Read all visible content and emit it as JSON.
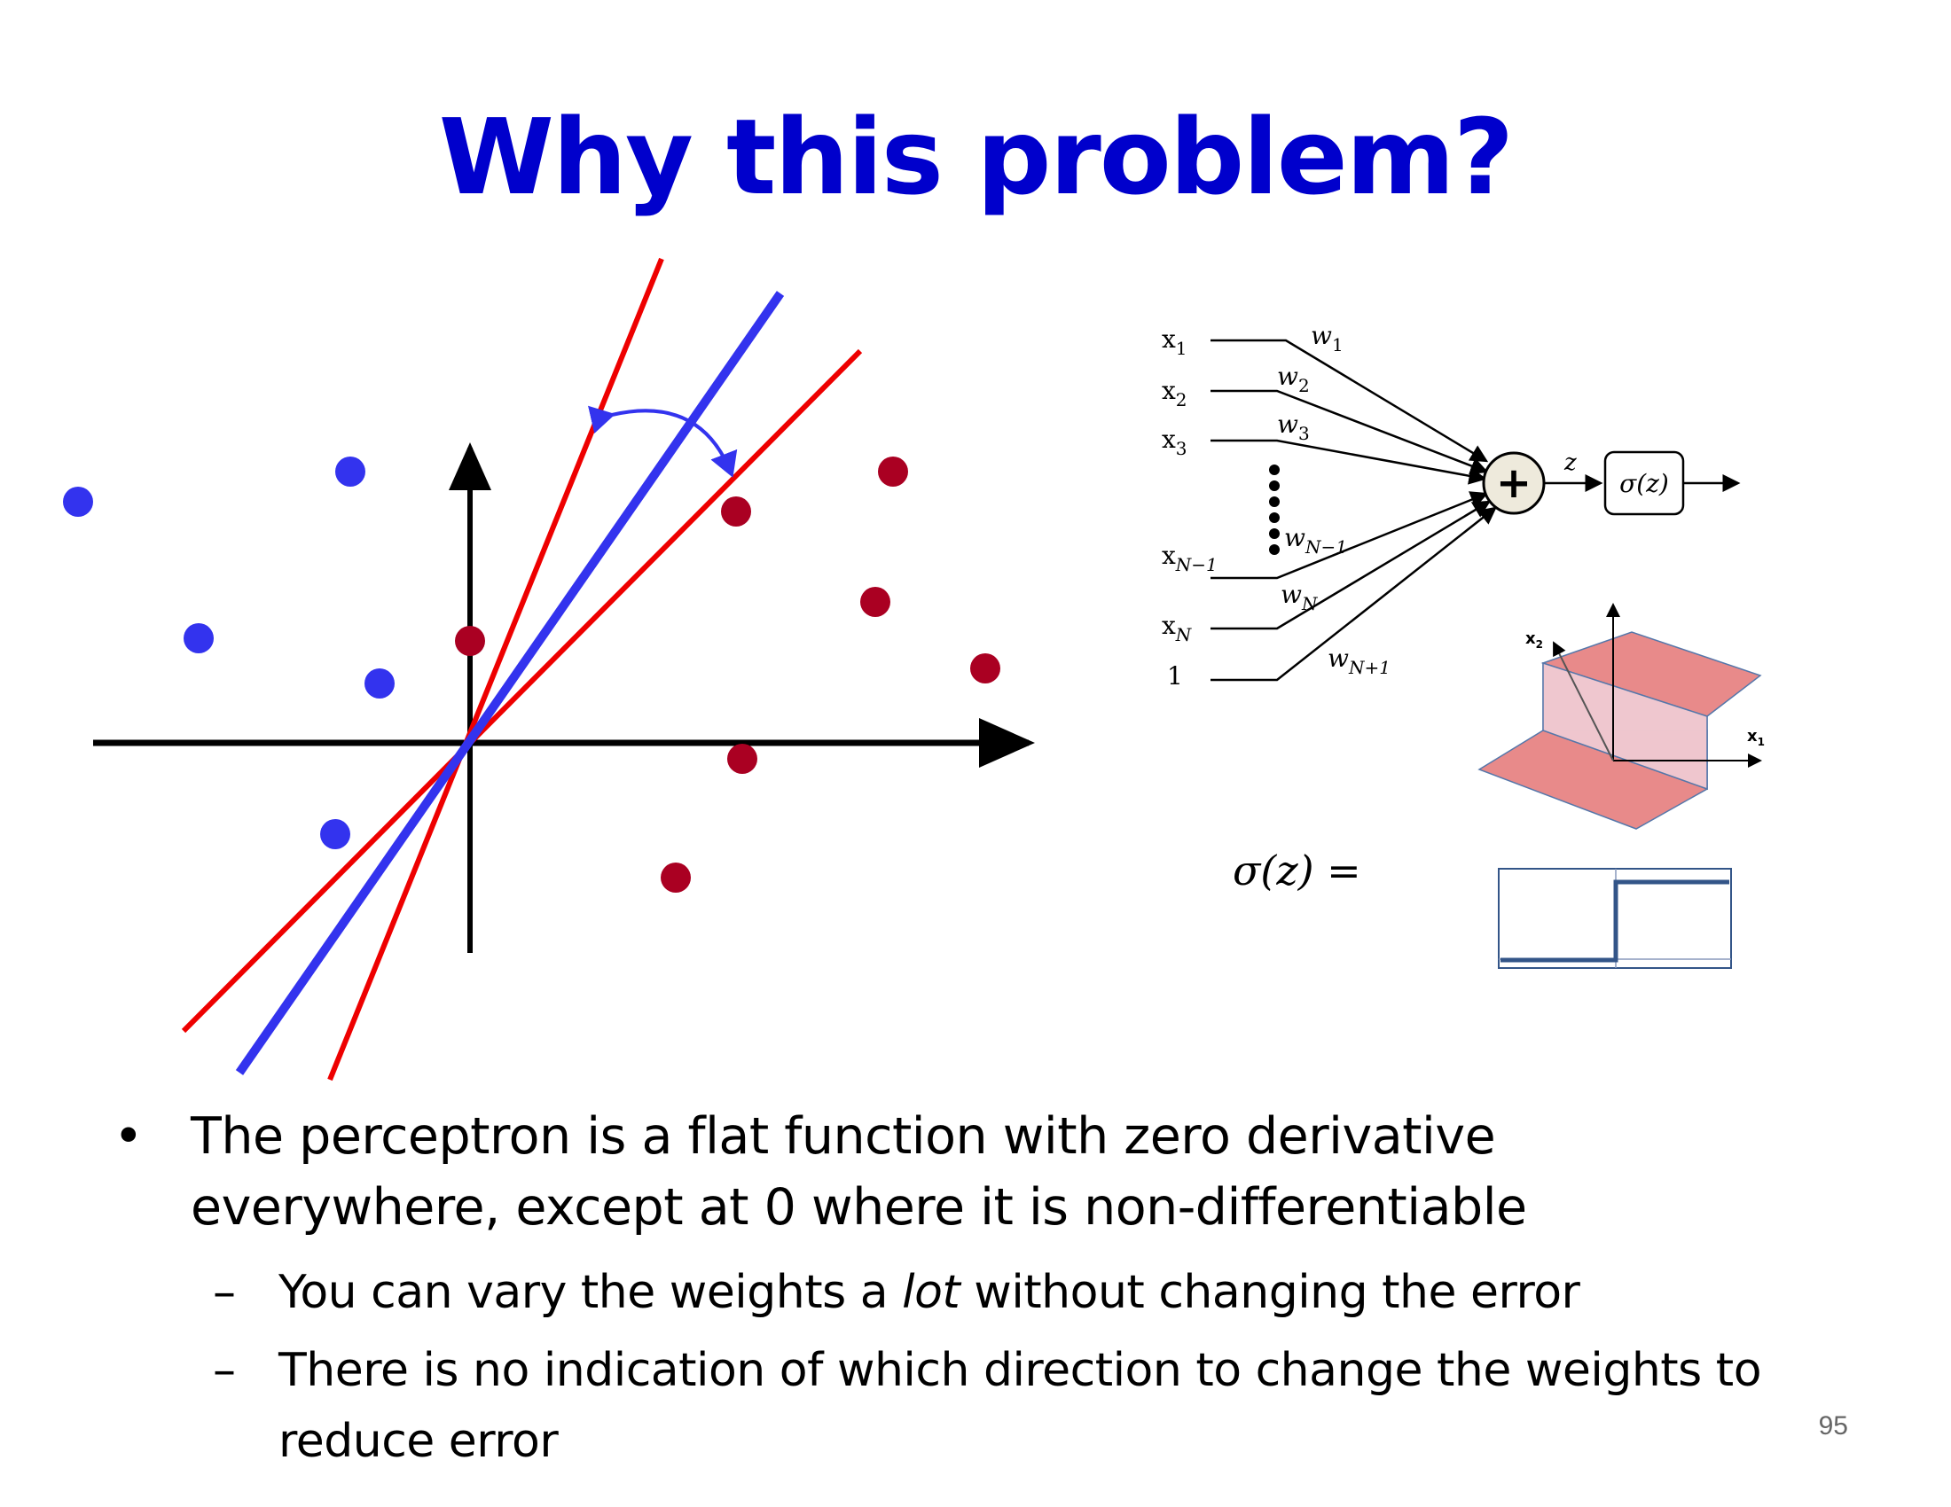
{
  "slide": {
    "title": "Why this problem?",
    "page_number": "95"
  },
  "bullets": {
    "main": "The perceptron is a flat function with zero derivative everywhere, except at 0 where it is non-differentiable",
    "sub1_pre": "You can vary the weights a ",
    "sub1_em": "lot",
    "sub1_post": " without changing the error",
    "sub2": "There is no indication of which direction to change the weights to reduce error",
    "bullet_glyph": "•",
    "dash_glyph": "–"
  },
  "perceptron": {
    "inputs": [
      "x1",
      "x2",
      "x3",
      "xN−1",
      "xN",
      "1"
    ],
    "input_labels": {
      "x1": "x",
      "x1sub": "1",
      "x2": "x",
      "x2sub": "2",
      "x3": "x",
      "x3sub": "3",
      "xN1": "x",
      "xN1sub": "N−1",
      "xN": "x",
      "xNsub": "N",
      "one": "1"
    },
    "weight_labels": {
      "w1": "w",
      "w1sub": "1",
      "w2": "w",
      "w2sub": "2",
      "w3": "w",
      "w3sub": "3",
      "wN1": "w",
      "wN1sub": "N−1",
      "wN": "w",
      "wNsub": "N",
      "wN1p": "w",
      "wN1psub": "N+1"
    },
    "sum_symbol": "+",
    "z_label": "z",
    "activation_label": "σ(z)",
    "sigma_eq": "σ(z) ="
  },
  "surface": {
    "axis_x2": "x",
    "axis_x2_sub": "2",
    "axis_x1": "x",
    "axis_x1_sub": "1"
  },
  "colors": {
    "title": "#0000cc",
    "blue_points": "#3333ee",
    "red_points": "#aa0022",
    "red_lines": "#ee0000",
    "blue_line": "#3333ee"
  }
}
